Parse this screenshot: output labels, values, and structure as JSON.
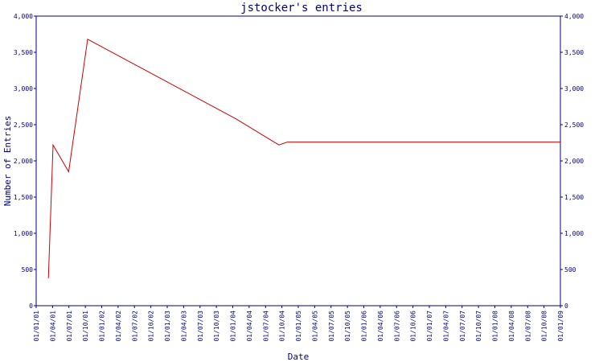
{
  "chart_data": {
    "type": "line",
    "title": "jstocker's entries",
    "xlabel": "Date",
    "ylabel": "Number of Entries",
    "x_ticks": [
      "01/01/01",
      "01/04/01",
      "01/07/01",
      "01/10/01",
      "01/01/02",
      "01/04/02",
      "01/07/02",
      "01/10/02",
      "01/01/03",
      "01/04/03",
      "01/07/03",
      "01/10/03",
      "01/01/04",
      "01/04/04",
      "01/07/04",
      "01/10/04",
      "01/01/05",
      "01/04/05",
      "01/07/05",
      "01/10/05",
      "01/01/06",
      "01/04/06",
      "01/07/06",
      "01/10/06",
      "01/01/07",
      "01/04/07",
      "01/07/07",
      "01/10/07",
      "01/01/08",
      "01/04/08",
      "01/07/08",
      "01/10/08",
      "01/01/09"
    ],
    "y_ticks": [
      "0",
      "500",
      "1,000",
      "1,500",
      "2,000",
      "2,500",
      "3,000",
      "3,500",
      "4,000"
    ],
    "ylim": [
      0,
      4000
    ],
    "grid": false,
    "series": [
      {
        "color": "#cc0000",
        "x": [
          "2001-03-10",
          "2001-04-05",
          "2001-07-01",
          "2001-10-15",
          "2004-01-20",
          "2004-09-15",
          "2004-11-01",
          "2009-01-01"
        ],
        "y": [
          380,
          2220,
          1850,
          3680,
          2580,
          2220,
          2260,
          2260
        ]
      }
    ]
  }
}
